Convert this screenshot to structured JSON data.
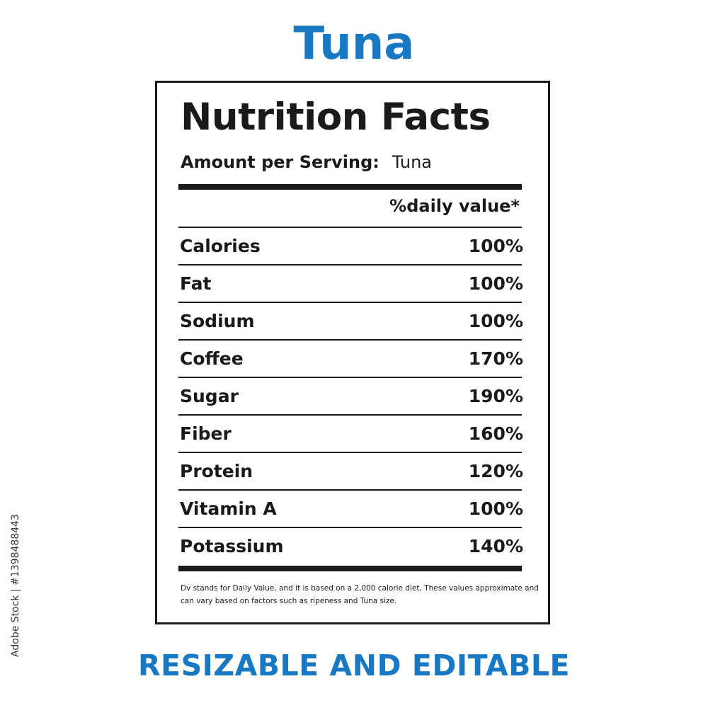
{
  "title": "Tuna",
  "subtitle": "RESIZABLE AND EDITABLE",
  "label": {
    "heading": "Nutrition Facts",
    "serving_label": "Amount per Serving:",
    "serving_value": "Tuna",
    "dv_header": "%daily value*",
    "nutrients": [
      {
        "name": "Calories",
        "percent": "100%"
      },
      {
        "name": "Fat",
        "percent": "100%"
      },
      {
        "name": "Sodium",
        "percent": "100%"
      },
      {
        "name": "Coffee",
        "percent": "170%"
      },
      {
        "name": "Sugar",
        "percent": "190%"
      },
      {
        "name": "Fiber",
        "percent": "160%"
      },
      {
        "name": "Protein",
        "percent": "120%"
      },
      {
        "name": "Vitamin A",
        "percent": "100%"
      },
      {
        "name": "Potassium",
        "percent": "140%"
      }
    ],
    "footnote": "Dv stands for Daily Value, and it is based on a 2,000 calorie diet, These values approximate and can vary based on factors such as ripeness and Tuna size."
  },
  "stock_id": "Adobe Stock | #1398488443",
  "colors": {
    "accent": "#1878c4",
    "ink": "#1a1a1a",
    "background": "#ffffff"
  }
}
